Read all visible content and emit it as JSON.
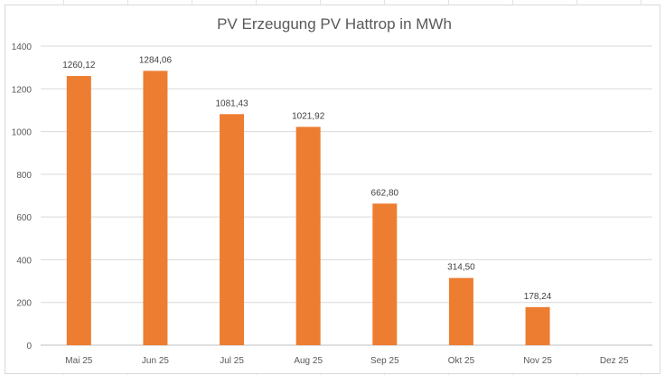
{
  "chart_data": {
    "type": "bar",
    "title": "PV Erzeugung PV Hattrop in MWh",
    "categories": [
      "Mai 25",
      "Jun 25",
      "Jul 25",
      "Aug 25",
      "Sep 25",
      "Okt 25",
      "Nov 25",
      "Dez 25"
    ],
    "values": [
      1260.12,
      1284.06,
      1081.43,
      1021.92,
      662.8,
      314.5,
      178.24,
      null
    ],
    "data_labels": [
      "1260,12",
      "1284,06",
      "1081,43",
      "1021,92",
      "662,80",
      "314,50",
      "178,24",
      ""
    ],
    "xlabel": "",
    "ylabel": "",
    "ylim": [
      0,
      1400
    ],
    "yticks": [
      0,
      200,
      400,
      600,
      800,
      1000,
      1200,
      1400
    ],
    "grid": true,
    "legend": "none",
    "bar_color": "#ED7D31"
  }
}
